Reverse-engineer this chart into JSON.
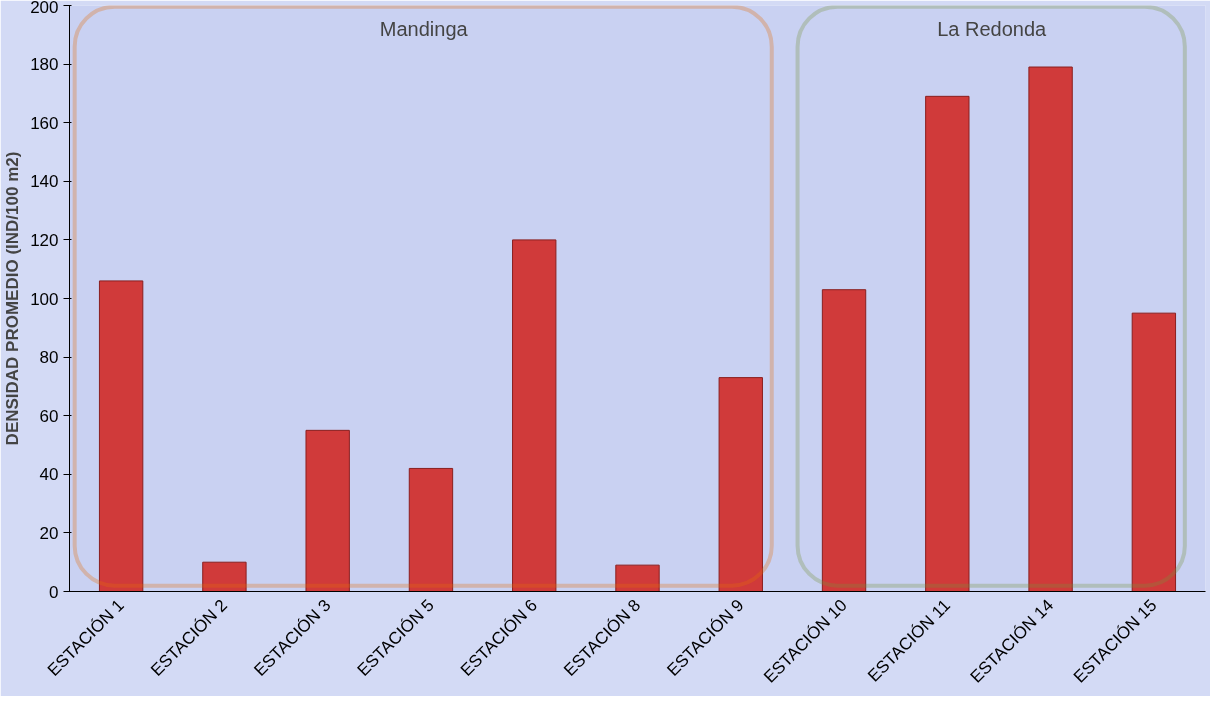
{
  "chart_data": {
    "type": "bar",
    "ylabel": "DENSIDAD PROMEDIO (IND/100 m2)",
    "categories": [
      "ESTACIÓN 1",
      "ESTACIÓN 2",
      "ESTACIÓN 3",
      "ESTACIÓN 5",
      "ESTACIÓN 6",
      "ESTACIÓN 8",
      "ESTACIÓN 9",
      "ESTACIÓN 10",
      "ESTACIÓN 11",
      "ESTACIÓN 14",
      "ESTACIÓN 15"
    ],
    "values": [
      106,
      10,
      55,
      42,
      120,
      9,
      73,
      103,
      169,
      179,
      95
    ],
    "color": "#d03a3a",
    "ylim": [
      0,
      200
    ],
    "yticks": [
      0,
      20,
      40,
      60,
      80,
      100,
      120,
      140,
      160,
      180,
      200
    ],
    "grid": false,
    "annotations": [
      "Mandinga",
      "La Redonda"
    ]
  }
}
